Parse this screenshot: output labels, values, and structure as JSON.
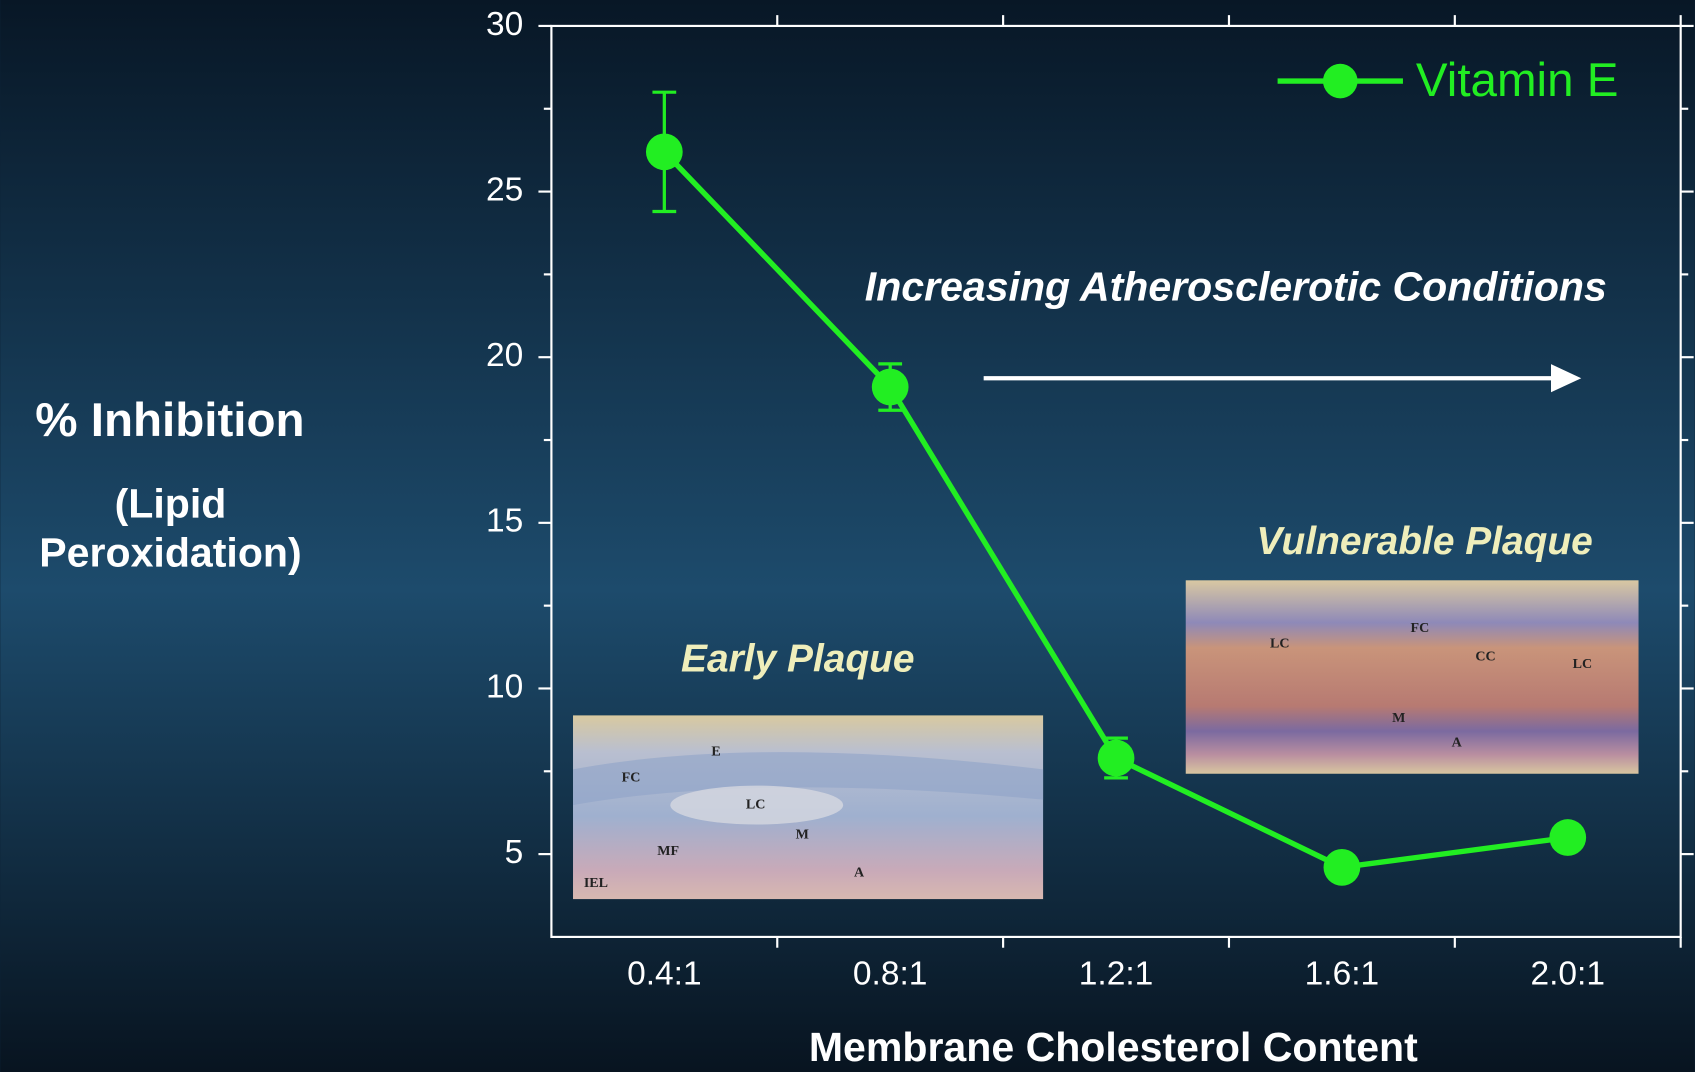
{
  "chart_data": {
    "type": "line",
    "x_label": "Membrane Cholesterol Content",
    "y_label": "% Inhibition",
    "y_sublabel": "(Lipid Peroxidation)",
    "categories": [
      "0.4:1",
      "0.8:1",
      "1.2:1",
      "1.6:1",
      "2.0:1"
    ],
    "series": [
      {
        "name": "Vitamin E",
        "color": "#22ee22",
        "values": [
          26.2,
          19.1,
          7.9,
          4.6,
          5.5
        ],
        "errors": [
          1.8,
          0.7,
          0.6,
          null,
          null
        ]
      }
    ],
    "ylim": [
      2.5,
      30
    ],
    "yticks": [
      5,
      10,
      15,
      20,
      25,
      30
    ],
    "minor_yticks": [
      7.5,
      12.5,
      17.5,
      22.5,
      27.5
    ],
    "legend": "top-right",
    "annotations": {
      "trend": "Increasing Atherosclerotic Conditions",
      "early": {
        "title": "Early Plaque",
        "labels": [
          "E",
          "FC",
          "LC",
          "M",
          "MF",
          "A",
          "IEL"
        ]
      },
      "vulnerable": {
        "title": "Vulnerable Plaque",
        "labels": [
          "LC",
          "FC",
          "CC",
          "LC",
          "M",
          "A"
        ]
      }
    }
  }
}
